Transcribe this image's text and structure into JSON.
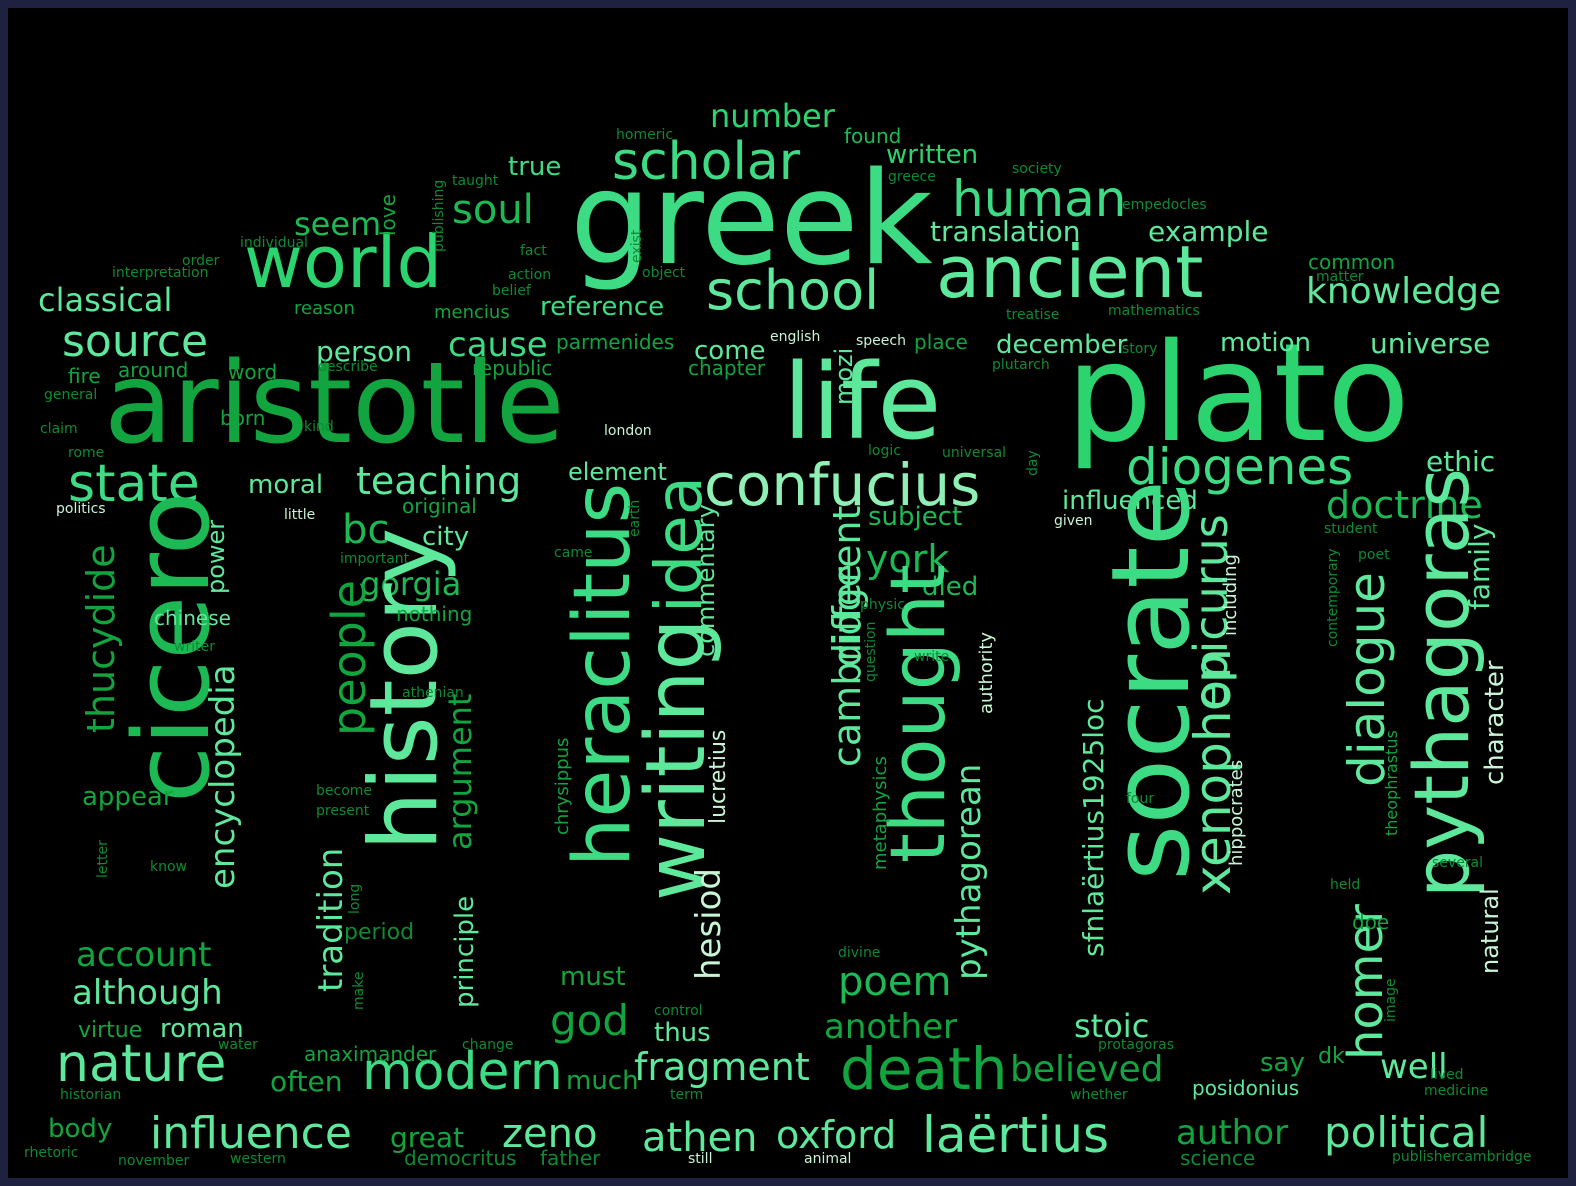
{
  "palette": {
    "background": "#000000",
    "frame": "#1e2140",
    "greens": [
      "#1db954",
      "#2bd46e",
      "#3ddc84",
      "#5ee89c",
      "#8ef0b4",
      "#12a43e",
      "#0e8a33",
      "#66d98f",
      "#c8f5d6"
    ]
  },
  "words": [
    {
      "text": "greek",
      "c": 2
    },
    {
      "text": "aristotle",
      "c": 5
    },
    {
      "text": "plato",
      "c": 1
    },
    {
      "text": "life",
      "c": 3
    },
    {
      "text": "world",
      "c": 1
    },
    {
      "text": "ancient",
      "c": 3
    },
    {
      "text": "scholar",
      "c": 2
    },
    {
      "text": "human",
      "c": 2
    },
    {
      "text": "school",
      "c": 3
    },
    {
      "text": "soul",
      "c": 0
    },
    {
      "text": "number",
      "c": 1
    },
    {
      "text": "true",
      "c": 2
    },
    {
      "text": "found",
      "c": 0
    },
    {
      "text": "written",
      "c": 1
    },
    {
      "text": "seem",
      "c": 0
    },
    {
      "text": "translation",
      "c": 3
    },
    {
      "text": "example",
      "c": 3
    },
    {
      "text": "classical",
      "c": 3
    },
    {
      "text": "knowledge",
      "c": 3
    },
    {
      "text": "source",
      "c": 3
    },
    {
      "text": "reference",
      "c": 2
    },
    {
      "text": "state",
      "c": 2
    },
    {
      "text": "confucius",
      "c": 4
    },
    {
      "text": "diogenes",
      "c": 2
    },
    {
      "text": "teaching",
      "c": 3
    },
    {
      "text": "moral",
      "c": 3
    },
    {
      "text": "cause",
      "c": 2
    },
    {
      "text": "person",
      "c": 3
    },
    {
      "text": "come",
      "c": 3
    },
    {
      "text": "december",
      "c": 3
    },
    {
      "text": "motion",
      "c": 3
    },
    {
      "text": "universe",
      "c": 3
    },
    {
      "text": "ethic",
      "c": 3
    },
    {
      "text": "doctrine",
      "c": 0
    },
    {
      "text": "influenced",
      "c": 3
    },
    {
      "text": "bc",
      "c": 0
    },
    {
      "text": "city",
      "c": 3
    },
    {
      "text": "subject",
      "c": 0
    },
    {
      "text": "york",
      "c": 0
    },
    {
      "text": "gorgia",
      "c": 0
    },
    {
      "text": "died",
      "c": 0
    },
    {
      "text": "cicero",
      "c": 0
    },
    {
      "text": "history",
      "c": 3
    },
    {
      "text": "heraclitus",
      "c": 2
    },
    {
      "text": "writing",
      "c": 3
    },
    {
      "text": "idea",
      "c": 2
    },
    {
      "text": "socrate",
      "c": 2
    },
    {
      "text": "pythagoras",
      "c": 3
    },
    {
      "text": "thought",
      "c": 2
    },
    {
      "text": "xenophon",
      "c": 3
    },
    {
      "text": "epicurus",
      "c": 3
    },
    {
      "text": "dialogue",
      "c": 3
    },
    {
      "text": "homer",
      "c": 3
    },
    {
      "text": "thucydide",
      "c": 5
    },
    {
      "text": "encyclopedia",
      "c": 3
    },
    {
      "text": "people",
      "c": 5
    },
    {
      "text": "argument",
      "c": 5
    },
    {
      "text": "cambridge",
      "c": 3
    },
    {
      "text": "different",
      "c": 3
    },
    {
      "text": "pythagorean",
      "c": 3
    },
    {
      "text": "sfnlaërtius1925loc",
      "c": 3
    },
    {
      "text": "hesiod",
      "c": 8
    },
    {
      "text": "lucretius",
      "c": 8
    },
    {
      "text": "tradition",
      "c": 3
    },
    {
      "text": "principle",
      "c": 3
    },
    {
      "text": "commentary",
      "c": 3
    },
    {
      "text": "family",
      "c": 3
    },
    {
      "text": "character",
      "c": 8
    },
    {
      "text": "natural",
      "c": 8
    },
    {
      "text": "power",
      "c": 3
    },
    {
      "text": "chinese",
      "c": 3
    },
    {
      "text": "nothing",
      "c": 5
    },
    {
      "text": "mozi",
      "c": 3
    },
    {
      "text": "account",
      "c": 5
    },
    {
      "text": "although",
      "c": 3
    },
    {
      "text": "nature",
      "c": 3
    },
    {
      "text": "modern",
      "c": 2
    },
    {
      "text": "god",
      "c": 5
    },
    {
      "text": "poem",
      "c": 0
    },
    {
      "text": "another",
      "c": 5
    },
    {
      "text": "stoic",
      "c": 3
    },
    {
      "text": "death",
      "c": 5
    },
    {
      "text": "fragment",
      "c": 3
    },
    {
      "text": "believed",
      "c": 5
    },
    {
      "text": "well",
      "c": 3
    },
    {
      "text": "influence",
      "c": 3
    },
    {
      "text": "zeno",
      "c": 3
    },
    {
      "text": "athen",
      "c": 3
    },
    {
      "text": "oxford",
      "c": 3
    },
    {
      "text": "laërtius",
      "c": 3
    },
    {
      "text": "author",
      "c": 5
    },
    {
      "text": "political",
      "c": 3
    },
    {
      "text": "often",
      "c": 5
    },
    {
      "text": "much",
      "c": 5
    },
    {
      "text": "must",
      "c": 5
    },
    {
      "text": "thus",
      "c": 3
    },
    {
      "text": "say",
      "c": 5
    },
    {
      "text": "dk",
      "c": 5
    },
    {
      "text": "great",
      "c": 5
    },
    {
      "text": "body",
      "c": 5
    },
    {
      "text": "roman",
      "c": 3
    },
    {
      "text": "virtue",
      "c": 5
    },
    {
      "text": "appear",
      "c": 5
    },
    {
      "text": "period",
      "c": 6
    },
    {
      "text": "anaximander",
      "c": 5
    },
    {
      "text": "posidonius",
      "c": 3
    },
    {
      "text": "doe",
      "c": 5
    },
    {
      "text": "democritus",
      "c": 6
    },
    {
      "text": "father",
      "c": 6
    },
    {
      "text": "science",
      "c": 6
    },
    {
      "text": "element",
      "c": 3
    },
    {
      "text": "original",
      "c": 5
    },
    {
      "text": "word",
      "c": 5
    },
    {
      "text": "born",
      "c": 5
    },
    {
      "text": "around",
      "c": 5
    },
    {
      "text": "fire",
      "c": 5
    },
    {
      "text": "republic",
      "c": 5
    },
    {
      "text": "parmenides",
      "c": 5
    },
    {
      "text": "chapter",
      "c": 5
    },
    {
      "text": "place",
      "c": 5
    },
    {
      "text": "common",
      "c": 5
    },
    {
      "text": "love",
      "c": 5
    },
    {
      "text": "mencius",
      "c": 5
    },
    {
      "text": "reason",
      "c": 5
    },
    {
      "text": "chrysippus",
      "c": 5
    },
    {
      "text": "metaphysics",
      "c": 5
    },
    {
      "text": "authority",
      "c": 8
    },
    {
      "text": "theophrastus",
      "c": 5
    },
    {
      "text": "hippocrates",
      "c": 8
    },
    {
      "text": "including",
      "c": 8
    },
    {
      "text": "homeric",
      "c": 6
    },
    {
      "text": "taught",
      "c": 6
    },
    {
      "text": "society",
      "c": 6
    },
    {
      "text": "greece",
      "c": 6
    },
    {
      "text": "empedocles",
      "c": 6
    },
    {
      "text": "publishing",
      "c": 6
    },
    {
      "text": "individual",
      "c": 6
    },
    {
      "text": "fact",
      "c": 6
    },
    {
      "text": "exist",
      "c": 6
    },
    {
      "text": "order",
      "c": 6
    },
    {
      "text": "interpretation",
      "c": 6
    },
    {
      "text": "action",
      "c": 6
    },
    {
      "text": "belief",
      "c": 6
    },
    {
      "text": "object",
      "c": 6
    },
    {
      "text": "matter",
      "c": 6
    },
    {
      "text": "treatise",
      "c": 6
    },
    {
      "text": "mathematics",
      "c": 6
    },
    {
      "text": "english",
      "c": 8
    },
    {
      "text": "speech",
      "c": 8
    },
    {
      "text": "story",
      "c": 6
    },
    {
      "text": "describe",
      "c": 6
    },
    {
      "text": "plutarch",
      "c": 6
    },
    {
      "text": "general",
      "c": 6
    },
    {
      "text": "claim",
      "c": 6
    },
    {
      "text": "kind",
      "c": 6
    },
    {
      "text": "london",
      "c": 8
    },
    {
      "text": "rome",
      "c": 6
    },
    {
      "text": "logic",
      "c": 6
    },
    {
      "text": "universal",
      "c": 6
    },
    {
      "text": "day",
      "c": 6
    },
    {
      "text": "politics",
      "c": 8
    },
    {
      "text": "little",
      "c": 8
    },
    {
      "text": "given",
      "c": 8
    },
    {
      "text": "student",
      "c": 6
    },
    {
      "text": "important",
      "c": 6
    },
    {
      "text": "came",
      "c": 6
    },
    {
      "text": "earth",
      "c": 6
    },
    {
      "text": "poet",
      "c": 6
    },
    {
      "text": "physic",
      "c": 6
    },
    {
      "text": "contemporary",
      "c": 6
    },
    {
      "text": "writer",
      "c": 6
    },
    {
      "text": "question",
      "c": 6
    },
    {
      "text": "write",
      "c": 6
    },
    {
      "text": "athenian",
      "c": 6
    },
    {
      "text": "become",
      "c": 6
    },
    {
      "text": "present",
      "c": 6
    },
    {
      "text": "four",
      "c": 6
    },
    {
      "text": "know",
      "c": 6
    },
    {
      "text": "letter",
      "c": 6
    },
    {
      "text": "long",
      "c": 6
    },
    {
      "text": "several",
      "c": 6
    },
    {
      "text": "held",
      "c": 6
    },
    {
      "text": "make",
      "c": 6
    },
    {
      "text": "divine",
      "c": 6
    },
    {
      "text": "image",
      "c": 6
    },
    {
      "text": "control",
      "c": 6
    },
    {
      "text": "water",
      "c": 6
    },
    {
      "text": "change",
      "c": 6
    },
    {
      "text": "protagoras",
      "c": 6
    },
    {
      "text": "lived",
      "c": 6
    },
    {
      "text": "historian",
      "c": 6
    },
    {
      "text": "term",
      "c": 6
    },
    {
      "text": "whether",
      "c": 6
    },
    {
      "text": "medicine",
      "c": 6
    },
    {
      "text": "rhetoric",
      "c": 6
    },
    {
      "text": "november",
      "c": 6
    },
    {
      "text": "western",
      "c": 6
    },
    {
      "text": "still",
      "c": 8
    },
    {
      "text": "animal",
      "c": 8
    },
    {
      "text": "publishercambridge",
      "c": 6
    }
  ]
}
